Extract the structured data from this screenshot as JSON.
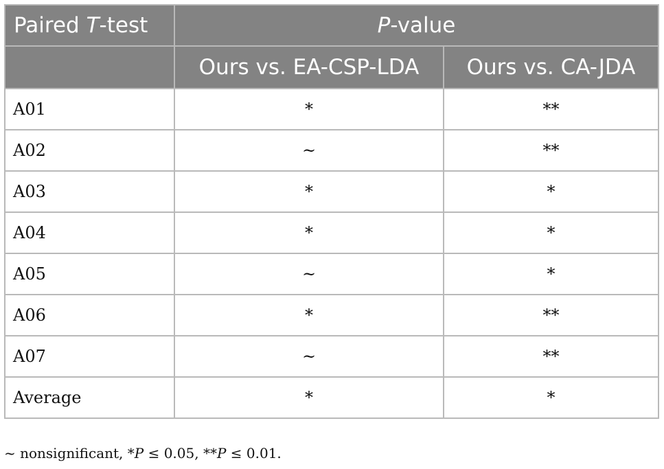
{
  "table": {
    "header": {
      "corner_pre": "Paired ",
      "corner_italic": "T",
      "corner_post": "-test",
      "group_italic": "P",
      "group_post": "-value",
      "columns": [
        "Ours vs. EA-CSP-LDA",
        "Ours vs. CA-JDA"
      ]
    },
    "rows": [
      {
        "label": "A01",
        "values": [
          "*",
          "**"
        ]
      },
      {
        "label": "A02",
        "values": [
          "~",
          "**"
        ]
      },
      {
        "label": "A03",
        "values": [
          "*",
          "*"
        ]
      },
      {
        "label": "A04",
        "values": [
          "*",
          "*"
        ]
      },
      {
        "label": "A05",
        "values": [
          "~",
          "*"
        ]
      },
      {
        "label": "A06",
        "values": [
          "*",
          "**"
        ]
      },
      {
        "label": "A07",
        "values": [
          "~",
          "**"
        ]
      },
      {
        "label": "Average",
        "values": [
          "*",
          "*"
        ]
      }
    ]
  },
  "footnote": {
    "ns": "~ nonsignificant, ",
    "s1_star": "*",
    "s1_p": "P",
    "s1_rest": " ≤ 0.05, ",
    "s2_star": "**",
    "s2_p": "P",
    "s2_rest": " ≤ 0.01."
  }
}
